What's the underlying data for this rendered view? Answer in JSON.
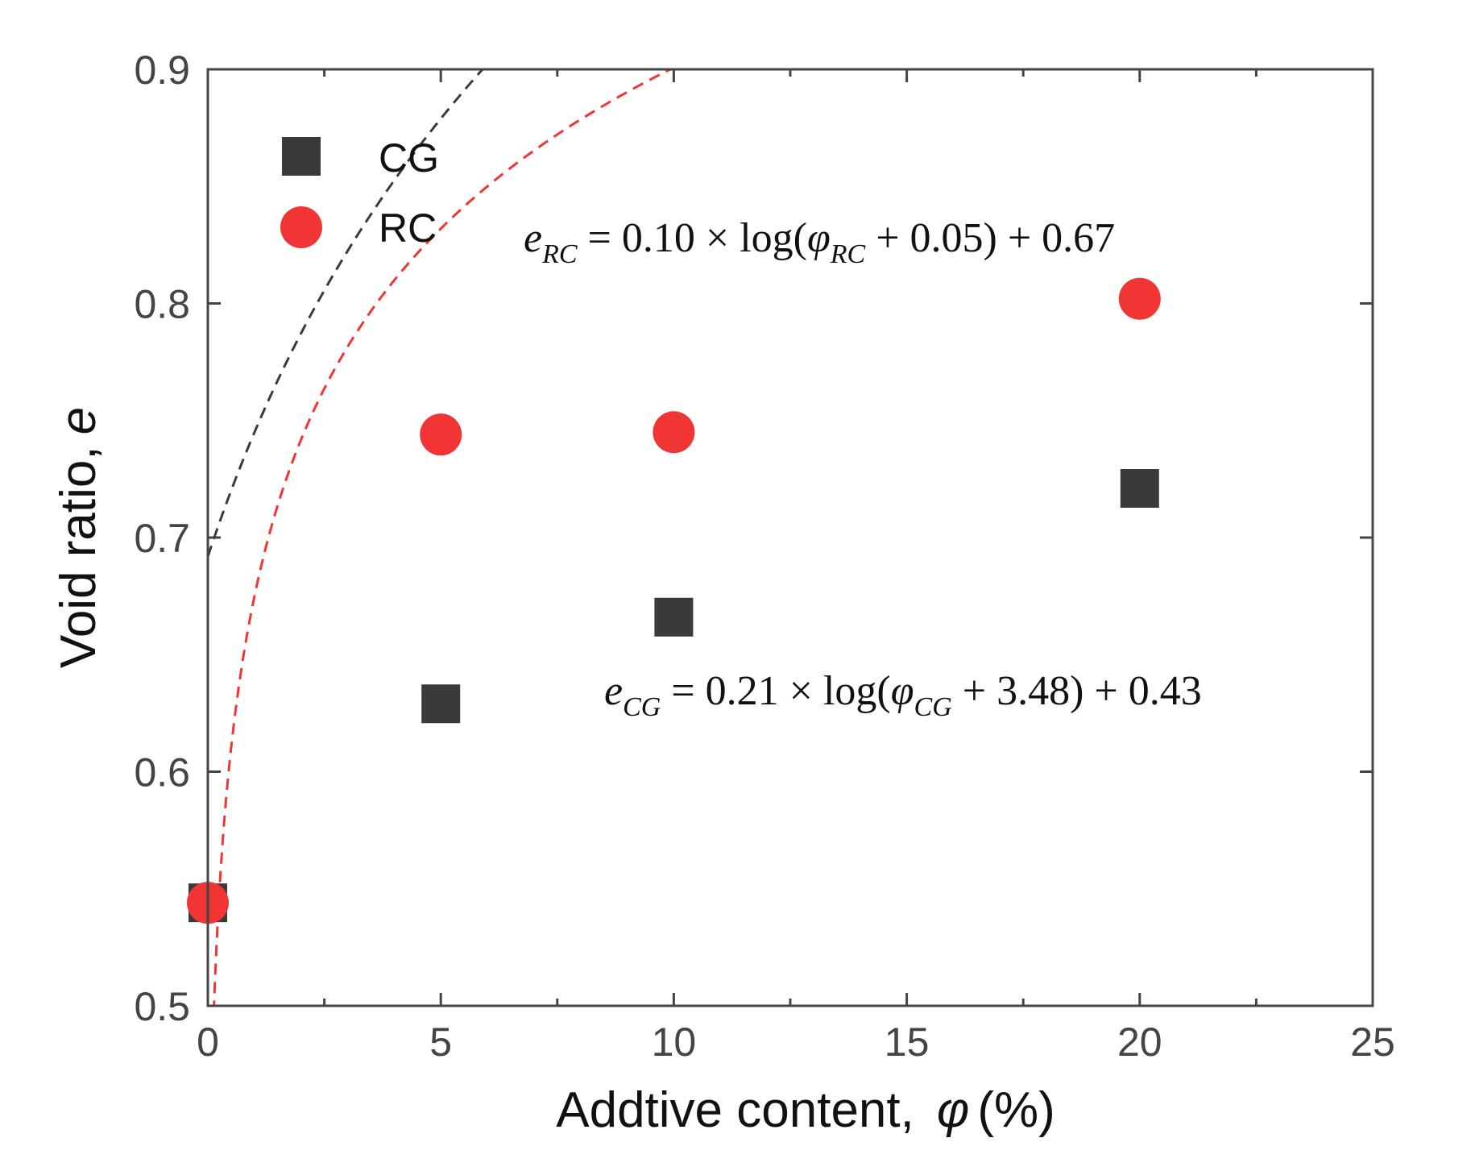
{
  "chart_data": {
    "type": "scatter",
    "title": "",
    "xlabel": "Addtive content,",
    "xlabel_symbol": "φ",
    "xlabel_unit": "(%)",
    "ylabel": "Void ratio,",
    "ylabel_symbol": "e",
    "xlim": [
      0,
      25
    ],
    "ylim": [
      0.5,
      0.9
    ],
    "x_ticks": [
      0,
      5,
      10,
      15,
      20,
      25
    ],
    "x_tick_labels": [
      "0",
      "5",
      "10",
      "15",
      "20",
      "25"
    ],
    "y_ticks": [
      0.5,
      0.6,
      0.7,
      0.8,
      0.9
    ],
    "y_tick_labels": [
      "0.5",
      "0.6",
      "0.7",
      "0.8",
      "0.9"
    ],
    "legend_position": "top-left",
    "series": [
      {
        "name": "CG",
        "marker": "square",
        "color": "#3a3a3a",
        "x": [
          0,
          5,
          10,
          20
        ],
        "y": [
          0.544,
          0.629,
          0.666,
          0.721
        ],
        "fit": {
          "a": 0.21,
          "b": 3.48,
          "c": 0.43,
          "color": "#3a3a3a"
        },
        "equation": {
          "lhs": "e",
          "lhs_sub": "CG",
          "mid": " = 0.21 × log(",
          "var": "φ",
          "var_sub": "CG",
          "rhs": " + 3.48) + 0.43"
        }
      },
      {
        "name": "RC",
        "marker": "circle",
        "color": "#f13434",
        "x": [
          0,
          5,
          10,
          20
        ],
        "y": [
          0.544,
          0.744,
          0.745,
          0.802
        ],
        "fit": {
          "a": 0.1,
          "b": 0.05,
          "c": 0.67,
          "color": "#f13434"
        },
        "equation": {
          "lhs": "e",
          "lhs_sub": "RC",
          "mid": " = 0.10 × log(",
          "var": "φ",
          "var_sub": "RC",
          "rhs": " + 0.05) + 0.67"
        }
      }
    ]
  }
}
